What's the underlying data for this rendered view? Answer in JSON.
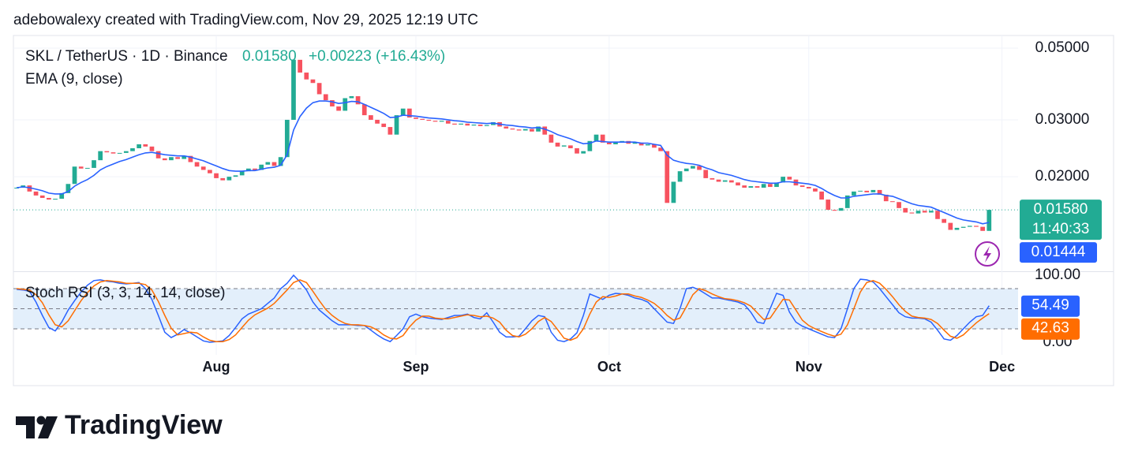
{
  "header": {
    "credit": "adebowalexy created with TradingView.com, Nov 29, 2025 12:19 UTC"
  },
  "footer": {
    "logo": "TradingView"
  },
  "chart_data": [
    {
      "type": "candlestick",
      "symbol": "SKL / TetherUS · 1D · Binance",
      "last_price": {
        "value": 0.0158,
        "label": "0.01580"
      },
      "change": "+0.00223 (+16.43%)",
      "countdown": "11:40:33",
      "log_scale": true,
      "grid": true,
      "up_color": "#22ab94",
      "down_color": "#f7525f",
      "ylim": [
        0.0102,
        0.0547
      ],
      "yticks": [
        {
          "value": 0.05,
          "label": "0.05000"
        },
        {
          "value": 0.03,
          "label": "0.03000"
        },
        {
          "value": 0.02,
          "label": "0.02000"
        }
      ],
      "xlim": [
        -0.5,
        155.5
      ],
      "xticks": [
        {
          "value": 31,
          "label": "Aug"
        },
        {
          "value": 62,
          "label": "Sep"
        },
        {
          "value": 92,
          "label": "Oct"
        },
        {
          "value": 123,
          "label": "Nov"
        },
        {
          "value": 153,
          "label": "Dec"
        }
      ],
      "close": [
        0.0185,
        0.0188,
        0.018,
        0.0175,
        0.0172,
        0.017,
        0.0171,
        0.0178,
        0.019,
        0.0215,
        0.0212,
        0.0213,
        0.0225,
        0.024,
        0.0238,
        0.0236,
        0.0237,
        0.024,
        0.0245,
        0.0252,
        0.0248,
        0.024,
        0.0228,
        0.0225,
        0.023,
        0.0227,
        0.0232,
        0.0222,
        0.0215,
        0.021,
        0.0205,
        0.0198,
        0.0195,
        0.02,
        0.0202,
        0.0208,
        0.0212,
        0.021,
        0.0218,
        0.0222,
        0.0216,
        0.023,
        0.03,
        0.046,
        0.042,
        0.04,
        0.039,
        0.036,
        0.0345,
        0.033,
        0.032,
        0.035,
        0.0355,
        0.0335,
        0.031,
        0.03,
        0.0292,
        0.0285,
        0.027,
        0.031,
        0.0325,
        0.0305,
        0.0302,
        0.03,
        0.0298,
        0.0296,
        0.0298,
        0.0292,
        0.029,
        0.0292,
        0.0288,
        0.029,
        0.0287,
        0.0289,
        0.0295,
        0.0286,
        0.0282,
        0.028,
        0.0278,
        0.0281,
        0.0276,
        0.0286,
        0.027,
        0.0255,
        0.0248,
        0.025,
        0.0245,
        0.0236,
        0.024,
        0.0258,
        0.027,
        0.0255,
        0.0252,
        0.0256,
        0.0258,
        0.0253,
        0.0255,
        0.025,
        0.0252,
        0.0246,
        0.024,
        0.0166,
        0.0193,
        0.0208,
        0.0212,
        0.0216,
        0.021,
        0.0198,
        0.0196,
        0.0193,
        0.0195,
        0.0192,
        0.0188,
        0.0185,
        0.0187,
        0.0185,
        0.019,
        0.0186,
        0.0192,
        0.02,
        0.0196,
        0.0188,
        0.0186,
        0.0184,
        0.018,
        0.017,
        0.0158,
        0.0157,
        0.016,
        0.0175,
        0.018,
        0.0181,
        0.0179,
        0.0182,
        0.0176,
        0.0168,
        0.0167,
        0.016,
        0.0155,
        0.0154,
        0.0157,
        0.0155,
        0.0157,
        0.0148,
        0.0144,
        0.0137,
        0.0139,
        0.014,
        0.0141,
        0.014,
        0.0136,
        0.0158
      ],
      "series": [
        {
          "name": "EMA (9, close)",
          "color": "#2962ff",
          "values": [
            0.0185,
            0.0186,
            0.0185,
            0.0183,
            0.0181,
            0.0178,
            0.0177,
            0.0177,
            0.018,
            0.0187,
            0.0192,
            0.0196,
            0.0202,
            0.021,
            0.0215,
            0.0219,
            0.0223,
            0.0226,
            0.023,
            0.0234,
            0.0237,
            0.0238,
            0.0236,
            0.0234,
            0.0233,
            0.0232,
            0.0232,
            0.023,
            0.0227,
            0.0224,
            0.022,
            0.0216,
            0.0212,
            0.0209,
            0.0208,
            0.0208,
            0.0209,
            0.0209,
            0.0211,
            0.0213,
            0.0214,
            0.0217,
            0.0234,
            0.0279,
            0.0307,
            0.0326,
            0.0339,
            0.0343,
            0.0343,
            0.0341,
            0.0337,
            0.0339,
            0.0342,
            0.0341,
            0.0335,
            0.0328,
            0.0321,
            0.0314,
            0.0305,
            0.0306,
            0.031,
            0.0309,
            0.0308,
            0.0306,
            0.0304,
            0.0303,
            0.0302,
            0.03,
            0.0298,
            0.0297,
            0.0295,
            0.0294,
            0.0293,
            0.0292,
            0.0293,
            0.0291,
            0.0289,
            0.0288,
            0.0286,
            0.0285,
            0.0283,
            0.0284,
            0.0281,
            0.0276,
            0.027,
            0.0266,
            0.0262,
            0.0257,
            0.0253,
            0.0254,
            0.0258,
            0.0257,
            0.0256,
            0.0256,
            0.0256,
            0.0256,
            0.0256,
            0.0254,
            0.0254,
            0.0252,
            0.025,
            0.0233,
            0.0225,
            0.0222,
            0.022,
            0.0219,
            0.0217,
            0.0213,
            0.021,
            0.0206,
            0.0204,
            0.0202,
            0.0199,
            0.0196,
            0.0194,
            0.0193,
            0.0192,
            0.0191,
            0.0191,
            0.0193,
            0.0193,
            0.0192,
            0.0191,
            0.019,
            0.0188,
            0.0184,
            0.0179,
            0.0175,
            0.0172,
            0.0172,
            0.0174,
            0.0175,
            0.0176,
            0.0177,
            0.0177,
            0.0175,
            0.0174,
            0.0171,
            0.0168,
            0.0165,
            0.0163,
            0.0162,
            0.0161,
            0.0158,
            0.0155,
            0.0152,
            0.0149,
            0.0147,
            0.0146,
            0.0145,
            0.0143,
            0.01444
          ]
        }
      ]
    },
    {
      "type": "stoch_rsi",
      "name": "Stoch RSI (3, 3, 14, 14, close)",
      "ylim": [
        -18.8,
        104.7
      ],
      "yticks": [
        {
          "value": 100,
          "label": "100.00"
        },
        {
          "value": 0,
          "label": "0.00"
        }
      ],
      "levels": [
        20,
        50,
        80
      ],
      "band_color": "#e3effb",
      "series": [
        {
          "color": "#2962ff",
          "values": [
            79,
            78,
            76,
            60,
            40,
            22,
            17,
            30,
            48,
            62,
            75,
            85,
            92,
            93,
            91,
            90,
            88,
            87,
            88,
            89,
            80,
            64,
            40,
            15,
            7,
            12,
            19,
            14,
            8,
            2,
            0,
            1,
            2,
            10,
            22,
            35,
            42,
            46,
            50,
            58,
            66,
            80,
            88,
            100,
            90,
            78,
            60,
            48,
            40,
            32,
            26,
            26,
            26,
            25,
            25,
            18,
            11,
            5,
            1,
            10,
            20,
            38,
            42,
            38,
            36,
            35,
            34,
            37,
            40,
            40,
            42,
            37,
            35,
            44,
            30,
            15,
            8,
            8,
            9,
            20,
            32,
            40,
            38,
            15,
            3,
            1,
            5,
            14,
            40,
            72,
            68,
            64,
            70,
            73,
            72,
            70,
            66,
            64,
            60,
            50,
            40,
            30,
            28,
            50,
            80,
            82,
            78,
            72,
            66,
            66,
            64,
            62,
            60,
            56,
            45,
            30,
            28,
            50,
            73,
            70,
            45,
            30,
            24,
            20,
            16,
            12,
            8,
            7,
            20,
            50,
            80,
            94,
            93,
            90,
            80,
            68,
            56,
            44,
            38,
            36,
            36,
            35,
            30,
            18,
            5,
            3,
            10,
            20,
            30,
            38,
            40,
            54.49
          ]
        },
        {
          "color": "#ff6d00",
          "values": [
            80,
            79,
            78,
            71,
            59,
            41,
            26,
            23,
            32,
            47,
            62,
            74,
            84,
            90,
            92,
            91,
            90,
            88,
            88,
            88,
            86,
            78,
            61,
            40,
            21,
            11,
            13,
            15,
            14,
            8,
            3,
            1,
            1,
            4,
            11,
            22,
            33,
            41,
            46,
            51,
            58,
            68,
            78,
            89,
            93,
            89,
            76,
            62,
            49,
            40,
            33,
            28,
            26,
            26,
            25,
            23,
            18,
            11,
            6,
            5,
            10,
            23,
            33,
            39,
            39,
            36,
            35,
            35,
            37,
            39,
            41,
            40,
            38,
            39,
            36,
            30,
            18,
            10,
            8,
            12,
            20,
            31,
            37,
            31,
            19,
            6,
            3,
            7,
            20,
            42,
            60,
            68,
            67,
            69,
            72,
            72,
            69,
            67,
            63,
            58,
            50,
            40,
            33,
            36,
            53,
            71,
            80,
            77,
            72,
            68,
            65,
            64,
            62,
            59,
            54,
            44,
            34,
            36,
            50,
            64,
            63,
            48,
            33,
            25,
            20,
            16,
            12,
            9,
            12,
            26,
            50,
            75,
            89,
            92,
            88,
            79,
            68,
            56,
            46,
            39,
            37,
            36,
            34,
            28,
            18,
            9,
            6,
            11,
            20,
            29,
            36,
            42.63
          ]
        }
      ]
    }
  ]
}
